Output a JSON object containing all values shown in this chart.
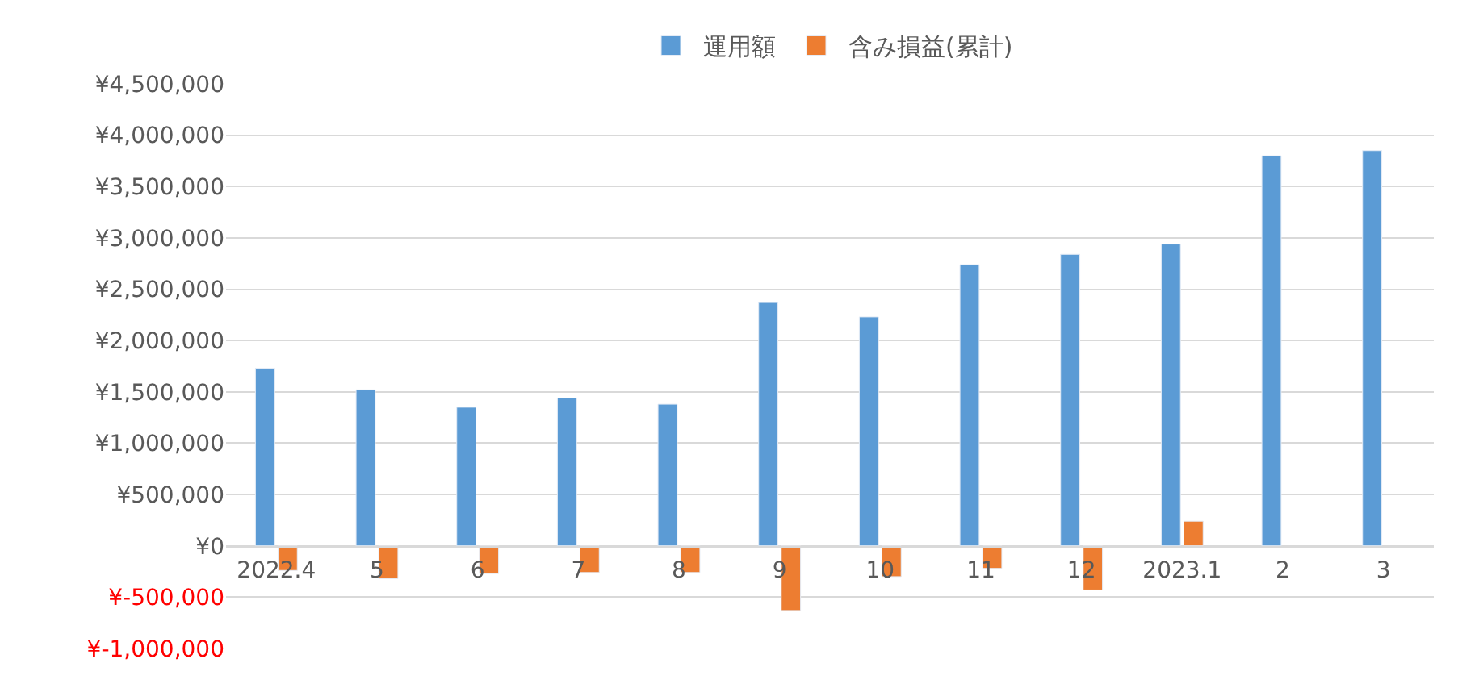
{
  "chart_data": {
    "type": "bar",
    "categories": [
      "2022.4",
      "5",
      "6",
      "7",
      "8",
      "9",
      "10",
      "11",
      "12",
      "2023.1",
      "2",
      "3"
    ],
    "series": [
      {
        "name": "運用額",
        "color": "#5b9bd5",
        "values": [
          1730000,
          1520000,
          1350000,
          1440000,
          1380000,
          2370000,
          2230000,
          2740000,
          2840000,
          2940000,
          3800000,
          3850000
        ]
      },
      {
        "name": "含み損益(累計)",
        "color": "#ed7d31",
        "values": [
          -240000,
          -320000,
          -270000,
          -260000,
          -260000,
          -630000,
          -300000,
          -220000,
          -430000,
          240000,
          null,
          null
        ]
      }
    ],
    "ylim": [
      -1000000,
      4500000
    ],
    "yticks": [
      {
        "value": 4500000,
        "label": "¥4,500,000"
      },
      {
        "value": 4000000,
        "label": "¥4,000,000"
      },
      {
        "value": 3500000,
        "label": "¥3,500,000"
      },
      {
        "value": 3000000,
        "label": "¥3,000,000"
      },
      {
        "value": 2500000,
        "label": "¥2,500,000"
      },
      {
        "value": 2000000,
        "label": "¥2,000,000"
      },
      {
        "value": 1500000,
        "label": "¥1,500,000"
      },
      {
        "value": 1000000,
        "label": "¥1,000,000"
      },
      {
        "value": 500000,
        "label": "¥500,000"
      },
      {
        "value": 0,
        "label": "¥0"
      },
      {
        "value": -500000,
        "label": "¥-500,000"
      },
      {
        "value": -1000000,
        "label": "¥-1,000,000"
      }
    ],
    "grid": "y",
    "legend": "top"
  }
}
